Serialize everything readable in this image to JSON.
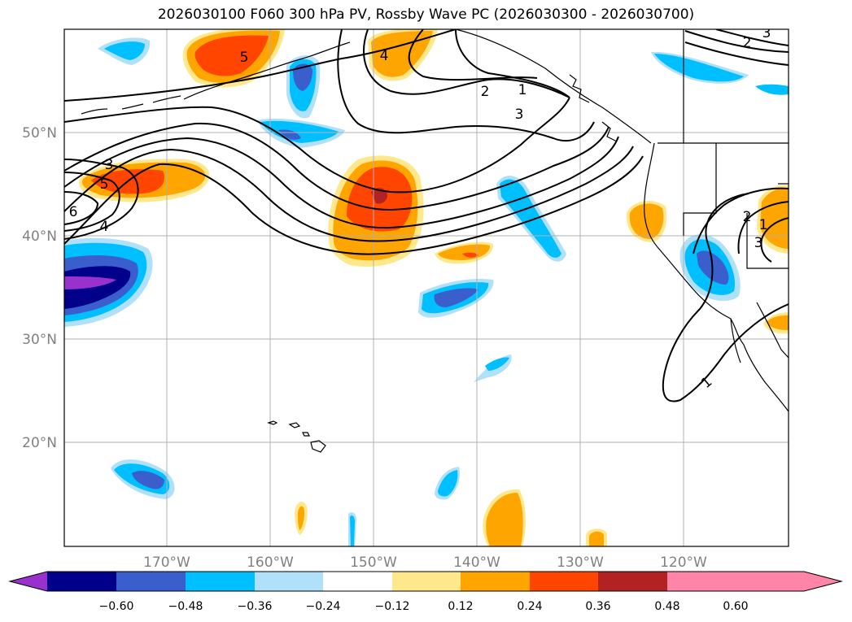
{
  "title": "2026030100 F060 300 hPa PV, Rossby Wave PC (2026030300 - 2026030700)",
  "map": {
    "projection": "PlateCarree",
    "lon_range": [
      -180,
      -110
    ],
    "lat_range": [
      10,
      60
    ],
    "lat_labels": [
      "50°N",
      "40°N",
      "30°N",
      "20°N"
    ],
    "lon_labels": [
      "170°W",
      "160°W",
      "150°W",
      "140°W",
      "130°W",
      "120°W"
    ],
    "contour_labels": [
      "5",
      "4",
      "2",
      "1",
      "3",
      "3",
      "5",
      "6",
      "4",
      "2",
      "1",
      "3",
      "2",
      "3",
      "1"
    ]
  },
  "colorbar": {
    "ticks": [
      "−0.60",
      "−0.48",
      "−0.36",
      "−0.24",
      "−0.12",
      "0.12",
      "0.24",
      "0.36",
      "0.48",
      "0.60"
    ],
    "colors": [
      "#9932cc",
      "#00008b",
      "#3a5fcd",
      "#00bfff",
      "#b0e0fa",
      "#ffffff",
      "#ffe88c",
      "#ffa500",
      "#ff4500",
      "#b22222",
      "#ff85a8"
    ]
  }
}
